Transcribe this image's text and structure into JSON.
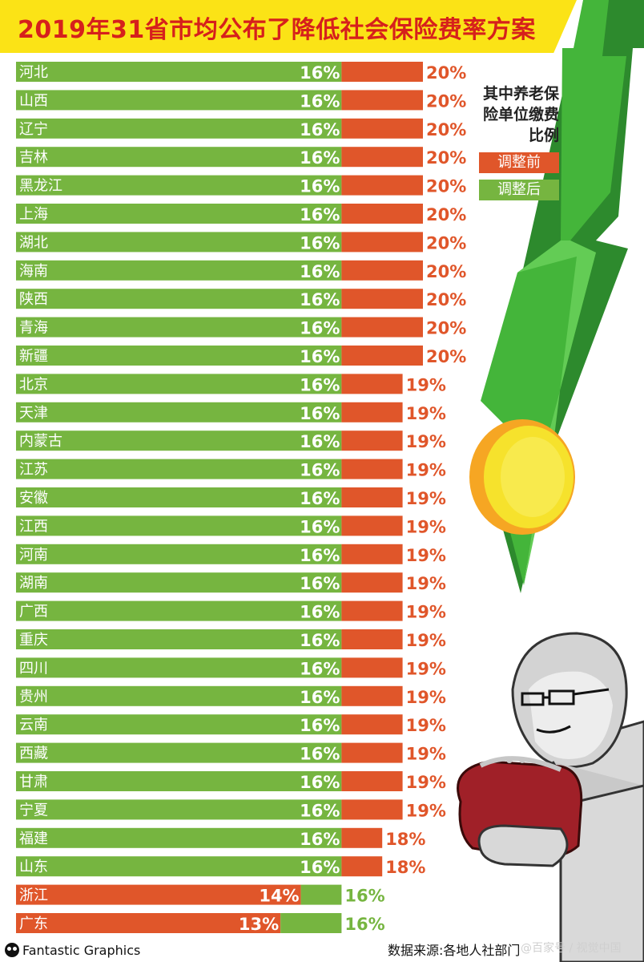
{
  "title": "2019年31省市均公布了降低社会保险费率方案",
  "legend": {
    "title": "其中养老保险单位缴费比例",
    "before_label": "调整前",
    "after_label": "调整后"
  },
  "colors": {
    "before": "#e0562a",
    "after": "#76b540",
    "title_bg": "#fbe316",
    "title_text": "#d6201c"
  },
  "source": "数据来源:各地人社部门",
  "brand": "Fantastic Graphics",
  "watermark": "@百家号 / 视觉中国",
  "chart_data": {
    "type": "bar",
    "subtype": "stacked-horizontal",
    "title": "2019年31省市均公布了降低社会保险费率方案",
    "series": [
      {
        "name": "调整后",
        "color": "#76b540"
      },
      {
        "name": "调整前",
        "color": "#e0562a"
      }
    ],
    "unit": "%",
    "rows": [
      {
        "province": "河北",
        "after": 16,
        "before": 20
      },
      {
        "province": "山西",
        "after": 16,
        "before": 20
      },
      {
        "province": "辽宁",
        "after": 16,
        "before": 20
      },
      {
        "province": "吉林",
        "after": 16,
        "before": 20
      },
      {
        "province": "黑龙江",
        "after": 16,
        "before": 20
      },
      {
        "province": "上海",
        "after": 16,
        "before": 20
      },
      {
        "province": "湖北",
        "after": 16,
        "before": 20
      },
      {
        "province": "海南",
        "after": 16,
        "before": 20
      },
      {
        "province": "陕西",
        "after": 16,
        "before": 20
      },
      {
        "province": "青海",
        "after": 16,
        "before": 20
      },
      {
        "province": "新疆",
        "after": 16,
        "before": 20
      },
      {
        "province": "北京",
        "after": 16,
        "before": 19
      },
      {
        "province": "天津",
        "after": 16,
        "before": 19
      },
      {
        "province": "内蒙古",
        "after": 16,
        "before": 19
      },
      {
        "province": "江苏",
        "after": 16,
        "before": 19
      },
      {
        "province": "安徽",
        "after": 16,
        "before": 19
      },
      {
        "province": "江西",
        "after": 16,
        "before": 19
      },
      {
        "province": "河南",
        "after": 16,
        "before": 19
      },
      {
        "province": "湖南",
        "after": 16,
        "before": 19
      },
      {
        "province": "广西",
        "after": 16,
        "before": 19
      },
      {
        "province": "重庆",
        "after": 16,
        "before": 19
      },
      {
        "province": "四川",
        "after": 16,
        "before": 19
      },
      {
        "province": "贵州",
        "after": 16,
        "before": 19
      },
      {
        "province": "云南",
        "after": 16,
        "before": 19
      },
      {
        "province": "西藏",
        "after": 16,
        "before": 19
      },
      {
        "province": "甘肃",
        "after": 16,
        "before": 19
      },
      {
        "province": "宁夏",
        "after": 16,
        "before": 19
      },
      {
        "province": "福建",
        "after": 16,
        "before": 18
      },
      {
        "province": "山东",
        "after": 16,
        "before": 18
      },
      {
        "province": "浙江",
        "after": 16,
        "before": 14
      },
      {
        "province": "广东",
        "after": 16,
        "before": 13
      }
    ]
  }
}
